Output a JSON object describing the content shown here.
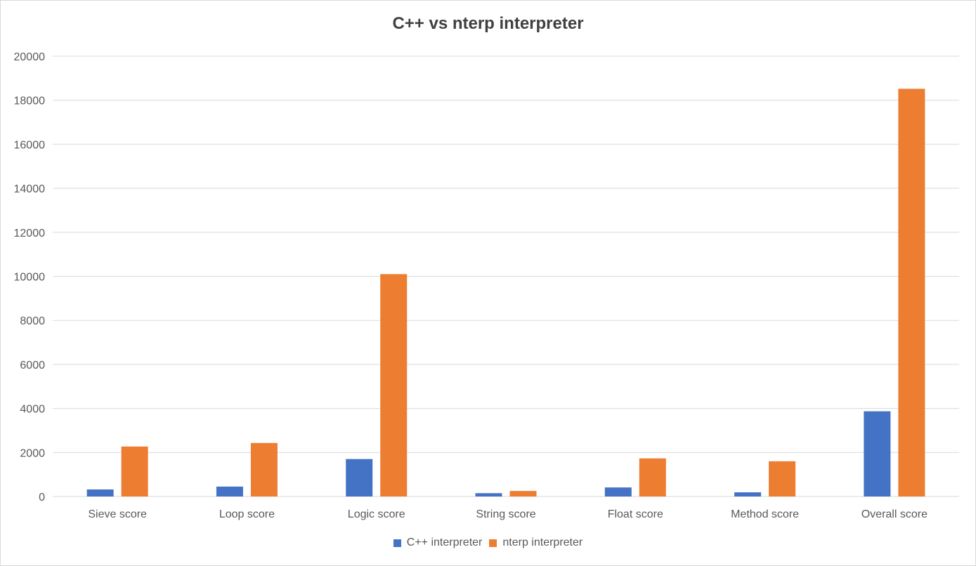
{
  "chart_data": {
    "type": "bar",
    "title": "C++ vs nterp interpreter",
    "xlabel": "",
    "ylabel": "",
    "categories": [
      "Sieve score",
      "Loop score",
      "Logic score",
      "String score",
      "Float score",
      "Method score",
      "Overall score"
    ],
    "series": [
      {
        "name": "C++ interpreter",
        "color": "#4472C4",
        "values": [
          320,
          450,
          1700,
          150,
          410,
          190,
          3870
        ]
      },
      {
        "name": "nterp interpreter",
        "color": "#ED7D31",
        "values": [
          2270,
          2430,
          10100,
          250,
          1730,
          1600,
          18520
        ]
      }
    ],
    "ylim": [
      0,
      20000
    ],
    "yticks": [
      0,
      2000,
      4000,
      6000,
      8000,
      10000,
      12000,
      14000,
      16000,
      18000,
      20000
    ],
    "grid": true,
    "legend_position": "bottom"
  }
}
